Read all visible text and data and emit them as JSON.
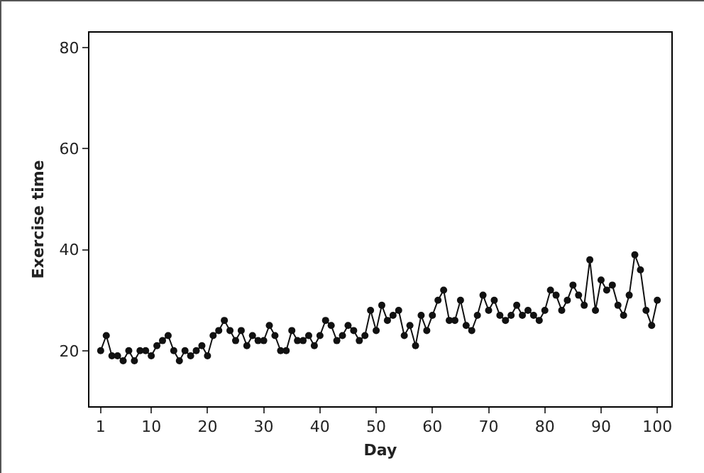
{
  "chart_data": {
    "type": "line",
    "xlabel": "Day",
    "ylabel": "Exercise time",
    "x": [
      1,
      2,
      3,
      4,
      5,
      6,
      7,
      8,
      9,
      10,
      11,
      12,
      13,
      14,
      15,
      16,
      17,
      18,
      19,
      20,
      21,
      22,
      23,
      24,
      25,
      26,
      27,
      28,
      29,
      30,
      31,
      32,
      33,
      34,
      35,
      36,
      37,
      38,
      39,
      40,
      41,
      42,
      43,
      44,
      45,
      46,
      47,
      48,
      49,
      50,
      51,
      52,
      53,
      54,
      55,
      56,
      57,
      58,
      59,
      60,
      61,
      62,
      63,
      64,
      65,
      66,
      67,
      68,
      69,
      70,
      71,
      72,
      73,
      74,
      75,
      76,
      77,
      78,
      79,
      80,
      81,
      82,
      83,
      84,
      85,
      86,
      87,
      88,
      89,
      90,
      91,
      92,
      93,
      94,
      95,
      96,
      97,
      98,
      99,
      100
    ],
    "series": [
      {
        "color": "#111111",
        "values": [
          20,
          23,
          19,
          19,
          18,
          20,
          18,
          20,
          20,
          19,
          21,
          22,
          23,
          20,
          18,
          20,
          19,
          20,
          21,
          19,
          23,
          24,
          26,
          24,
          22,
          24,
          21,
          23,
          22,
          22,
          25,
          23,
          20,
          20,
          24,
          22,
          22,
          23,
          21,
          23,
          26,
          25,
          22,
          23,
          25,
          24,
          22,
          23,
          28,
          24,
          29,
          26,
          27,
          28,
          23,
          25,
          21,
          27,
          24,
          27,
          30,
          32,
          26,
          26,
          30,
          25,
          24,
          27,
          31,
          28,
          30,
          27,
          26,
          27,
          29,
          27,
          28,
          27,
          26,
          28,
          32,
          31,
          28,
          30,
          33,
          31,
          29,
          38,
          28,
          34,
          32,
          33,
          29,
          27,
          31,
          39,
          36,
          28,
          25,
          30
        ]
      }
    ],
    "xlim": [
      -1,
      102.5
    ],
    "xticks": [
      1,
      10,
      20,
      30,
      40,
      50,
      60,
      70,
      80,
      90,
      100
    ],
    "ylim": [
      9,
      83
    ],
    "yticks": [
      20,
      40,
      60,
      80
    ],
    "grid": false,
    "legend": false,
    "marker": "circle",
    "line_style": "solid"
  }
}
